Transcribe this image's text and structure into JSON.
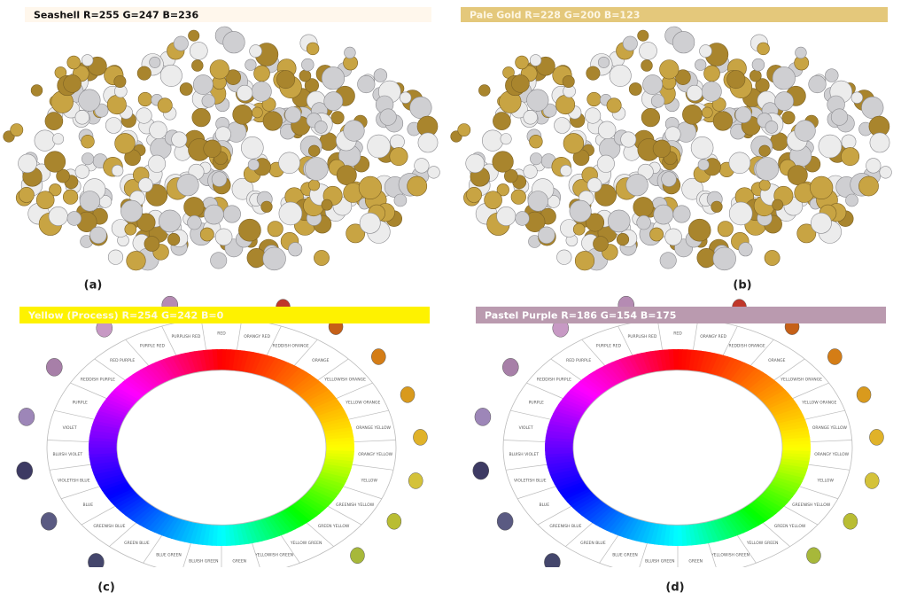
{
  "panels": [
    {
      "label_text": "Seashell R=255 G=247 B=236",
      "bar_color": "#fff7ec",
      "text_color": "#111111",
      "caption": "(a)"
    },
    {
      "label_text": "Pale Gold R=228 G=200 B=123",
      "bar_color": "#e4c87b",
      "text_color": "#fdf6e4",
      "caption": "(b)"
    },
    {
      "label_text": "Yellow (Process) R=254 G=242 B=0",
      "bar_color": "#fef200",
      "text_color": "#fdfbe0",
      "caption": "(c)"
    },
    {
      "label_text": "Pastel Purple R=186 G=154 B=175",
      "bar_color": "#ba9aaf",
      "text_color": "#ffffff",
      "caption": "(d)"
    }
  ],
  "wheel_labels": [
    "RED",
    "ORANGY RED",
    "REDDISH ORANGE",
    "ORANGE",
    "YELLOWISH ORANGE",
    "YELLOW ORANGE",
    "ORANGE YELLOW",
    "ORANGY YELLOW",
    "YELLOW",
    "GREENISH YELLOW",
    "GREEN YELLOW",
    "YELLOW GREEN",
    "YELLOWISH GREEN",
    "GREEN",
    "BLUISH GREEN",
    "BLUE GREEN",
    "GREEN BLUE",
    "GREENISH BLUE",
    "BLUE",
    "VIOLETISH BLUE",
    "BLUISH VIOLET",
    "VIOLET",
    "PURPLE",
    "REDDISH PURPLE",
    "RED PURPLE",
    "PURPLE RED",
    "PURPLISH RED"
  ]
}
